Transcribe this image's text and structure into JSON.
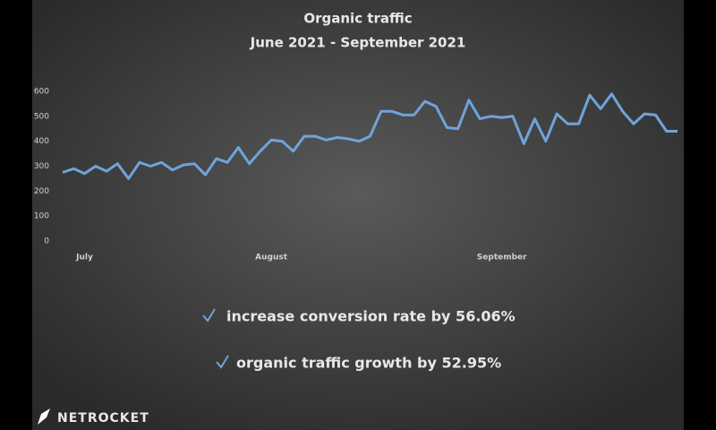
{
  "chart_data": {
    "type": "line",
    "title": "Organic traffic",
    "subtitle": "June 2021 - September 2021",
    "categories": [
      null,
      null,
      "July",
      null,
      null,
      null,
      null,
      null,
      null,
      null,
      null,
      null,
      null,
      null,
      null,
      null,
      null,
      null,
      null,
      "August",
      null,
      null,
      null,
      null,
      null,
      null,
      null,
      null,
      null,
      null,
      null,
      null,
      null,
      null,
      null,
      null,
      null,
      null,
      null,
      null,
      "September",
      null,
      null,
      null,
      null,
      null,
      null,
      null,
      null,
      null,
      null,
      null,
      null,
      null,
      null,
      null,
      null
    ],
    "values": [
      275,
      290,
      270,
      300,
      280,
      310,
      250,
      315,
      300,
      315,
      285,
      305,
      310,
      265,
      330,
      315,
      375,
      310,
      360,
      405,
      400,
      360,
      420,
      420,
      405,
      415,
      410,
      400,
      420,
      520,
      520,
      505,
      505,
      560,
      540,
      455,
      450,
      565,
      490,
      500,
      495,
      500,
      390,
      490,
      400,
      510,
      470,
      470,
      585,
      530,
      590,
      520,
      470,
      510,
      505,
      440,
      440
    ],
    "color": "#6fa3dc",
    "ylim": [
      0,
      600
    ],
    "yticks": [
      0,
      100,
      200,
      300,
      400,
      500,
      600
    ],
    "grid": false,
    "annotations": [
      "increase conversion rate by 56.06%",
      "organic traffic growth by 52.95%"
    ]
  },
  "footer": {
    "brand": "NETROCKET"
  }
}
